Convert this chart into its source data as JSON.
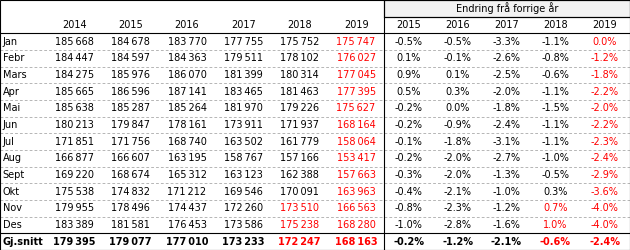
{
  "rows": [
    "Jan",
    "Febr",
    "Mars",
    "Apr",
    "Mai",
    "Jun",
    "Jul",
    "Aug",
    "Sept",
    "Okt",
    "Nov",
    "Des",
    "Gj.snitt"
  ],
  "years_left": [
    "2014",
    "2015",
    "2016",
    "2017",
    "2018",
    "2019"
  ],
  "years_right": [
    "2015",
    "2016",
    "2017",
    "2018",
    "2019"
  ],
  "left_data": [
    [
      185668,
      184678,
      183770,
      177755,
      175752,
      175747
    ],
    [
      184447,
      184597,
      184363,
      179511,
      178102,
      176027
    ],
    [
      184275,
      185976,
      186070,
      181399,
      180314,
      177045
    ],
    [
      185665,
      186596,
      187141,
      183465,
      181463,
      177395
    ],
    [
      185638,
      185287,
      185264,
      181970,
      179226,
      175627
    ],
    [
      180213,
      179847,
      178161,
      173911,
      171937,
      168164
    ],
    [
      171851,
      171756,
      168740,
      163502,
      161779,
      158064
    ],
    [
      166877,
      166607,
      163195,
      158767,
      157166,
      153417
    ],
    [
      169220,
      168674,
      165312,
      163123,
      162388,
      157663
    ],
    [
      175538,
      174832,
      171212,
      169546,
      170091,
      163963
    ],
    [
      179955,
      178496,
      174437,
      172260,
      173510,
      166563
    ],
    [
      183389,
      181581,
      176453,
      173586,
      175238,
      168280
    ],
    [
      179395,
      179077,
      177010,
      173233,
      172247,
      168163
    ]
  ],
  "right_data": [
    [
      -0.5,
      -0.5,
      -3.3,
      -1.1,
      0.0
    ],
    [
      0.1,
      -0.1,
      -2.6,
      -0.8,
      -1.2
    ],
    [
      0.9,
      0.1,
      -2.5,
      -0.6,
      -1.8
    ],
    [
      0.5,
      0.3,
      -2.0,
      -1.1,
      -2.2
    ],
    [
      -0.2,
      0.0,
      -1.8,
      -1.5,
      -2.0
    ],
    [
      -0.2,
      -0.9,
      -2.4,
      -1.1,
      -2.2
    ],
    [
      -0.1,
      -1.8,
      -3.1,
      -1.1,
      -2.3
    ],
    [
      -0.2,
      -2.0,
      -2.7,
      -1.0,
      -2.4
    ],
    [
      -0.3,
      -2.0,
      -1.3,
      -0.5,
      -2.9
    ],
    [
      -0.4,
      -2.1,
      -1.0,
      0.3,
      -3.6
    ],
    [
      -0.8,
      -2.3,
      -1.2,
      0.7,
      -4.0
    ],
    [
      -1.0,
      -2.8,
      -1.6,
      1.0,
      -4.0
    ],
    [
      -0.2,
      -1.2,
      -2.1,
      -0.6,
      -2.4
    ]
  ],
  "normal_color": "#000000",
  "red_color": "#FF0000",
  "header_bg": "#FFFFFF",
  "right_header_bg": "#F2F2F2",
  "right_section_header": "Endring frå forrige år",
  "bold_last_row": true,
  "left_red_cells": {
    "col5_all_rows": true,
    "col4_rows": [
      10,
      11,
      12
    ]
  },
  "right_red_cells": {
    "col4_all_rows": true,
    "col3_rows": [
      10,
      11,
      12
    ]
  }
}
